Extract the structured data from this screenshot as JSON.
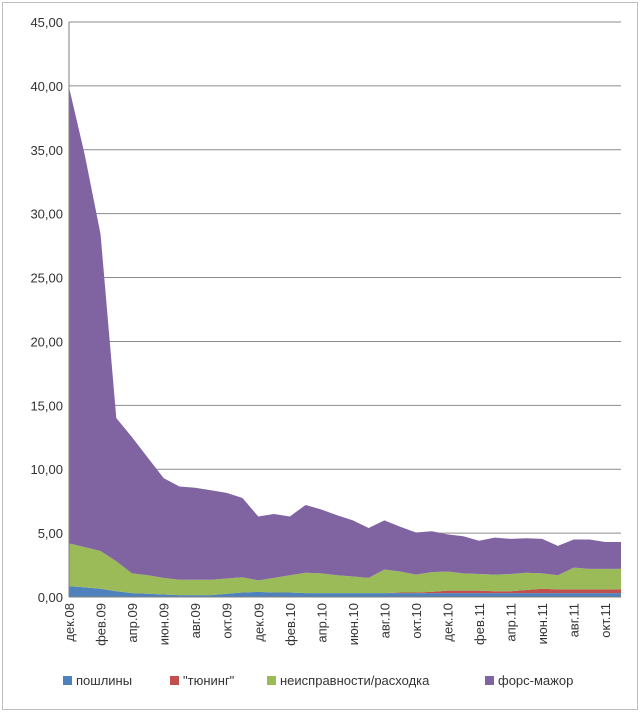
{
  "chart_data": {
    "type": "area",
    "stacked": true,
    "title": "",
    "xlabel": "",
    "ylabel": "",
    "ylim": [
      0,
      45
    ],
    "yticks": [
      "0,00",
      "5,00",
      "10,00",
      "15,00",
      "20,00",
      "25,00",
      "30,00",
      "35,00",
      "40,00",
      "45,00"
    ],
    "grid": true,
    "legend_position": "bottom",
    "categories": [
      "дек.08",
      "янв.09",
      "фев.09",
      "мар.09",
      "апр.09",
      "май.09",
      "июн.09",
      "июл.09",
      "авг.09",
      "сен.09",
      "окт.09",
      "ноя.09",
      "дек.09",
      "янв.10",
      "фев.10",
      "мар.10",
      "апр.10",
      "май.10",
      "июн.10",
      "июл.10",
      "авг.10",
      "сен.10",
      "окт.10",
      "ноя.10",
      "дек.10",
      "янв.11",
      "фев.11",
      "мар.11",
      "апр.11",
      "май.11",
      "июн.11",
      "июл.11",
      "авг.11",
      "сен.11",
      "окт.11",
      "ноя.11"
    ],
    "visible_tick_labels": [
      "дек.08",
      "фев.09",
      "апр.09",
      "июн.09",
      "авг.09",
      "окт.09",
      "дек.09",
      "фев.10",
      "апр.10",
      "июн.10",
      "авг.10",
      "окт.10",
      "дек.10",
      "фев.11",
      "апр.11",
      "июн.11",
      "авг.11",
      "окт.11"
    ],
    "series": [
      {
        "name": "пошлины",
        "color": "#4f81bd",
        "values": [
          0.85,
          0.75,
          0.65,
          0.45,
          0.3,
          0.25,
          0.2,
          0.15,
          0.15,
          0.15,
          0.25,
          0.35,
          0.4,
          0.35,
          0.35,
          0.3,
          0.3,
          0.3,
          0.3,
          0.3,
          0.3,
          0.3,
          0.3,
          0.3,
          0.3,
          0.3,
          0.3,
          0.3,
          0.3,
          0.3,
          0.3,
          0.3,
          0.3,
          0.3,
          0.3,
          0.3
        ]
      },
      {
        "name": "\"тюнинг\"",
        "color": "#c0504d",
        "values": [
          0,
          0,
          0,
          0,
          0,
          0,
          0,
          0,
          0,
          0,
          0,
          0,
          0,
          0,
          0,
          0,
          0,
          0,
          0,
          0,
          0,
          0.05,
          0.05,
          0.1,
          0.2,
          0.2,
          0.2,
          0.15,
          0.15,
          0.25,
          0.35,
          0.3,
          0.3,
          0.3,
          0.3,
          0.3
        ]
      },
      {
        "name": "неисправности/расходка",
        "color": "#9bbb59",
        "values": [
          3.35,
          3.15,
          2.95,
          2.35,
          1.55,
          1.45,
          1.3,
          1.2,
          1.2,
          1.2,
          1.2,
          1.2,
          0.9,
          1.15,
          1.35,
          1.6,
          1.55,
          1.4,
          1.3,
          1.2,
          1.85,
          1.65,
          1.4,
          1.55,
          1.5,
          1.35,
          1.3,
          1.3,
          1.35,
          1.35,
          1.2,
          1.1,
          1.7,
          1.6,
          1.6,
          1.6
        ]
      },
      {
        "name": "форс-мажор",
        "color": "#8064a2",
        "values": [
          35.7,
          30.7,
          24.8,
          11.2,
          10.65,
          9.2,
          7.8,
          7.3,
          7.2,
          7.0,
          6.7,
          6.2,
          5.0,
          5.0,
          4.6,
          5.3,
          5.0,
          4.7,
          4.4,
          3.9,
          3.85,
          3.5,
          3.3,
          3.2,
          2.9,
          2.9,
          2.6,
          2.9,
          2.75,
          2.7,
          2.7,
          2.3,
          2.2,
          2.3,
          2.1,
          2.1
        ]
      }
    ]
  }
}
